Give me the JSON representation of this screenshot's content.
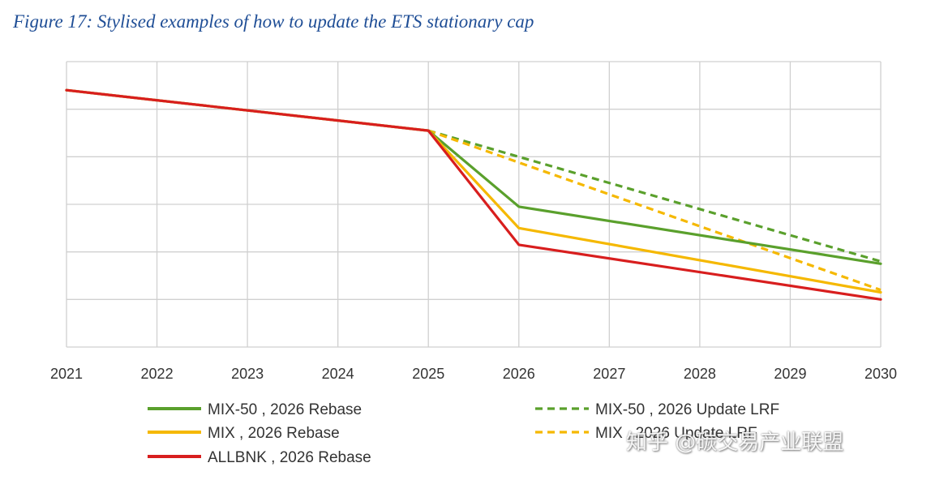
{
  "title": "Figure 17: Stylised examples of how to update the ETS stationary cap",
  "watermark": "知乎 @碳交易产业联盟",
  "chart_data": {
    "type": "line",
    "x": [
      2021,
      2022,
      2023,
      2024,
      2025,
      2026,
      2027,
      2028,
      2029,
      2030
    ],
    "xlabel": "",
    "ylabel": "",
    "ylim": [
      0,
      6
    ],
    "grid": true,
    "y_tick_labels_shown": false,
    "legend_position": "bottom",
    "series": [
      {
        "name": "MIX-50 , 2026 Rebase",
        "color": "#5aa02c",
        "dash": false,
        "x": [
          2021,
          2025,
          2026,
          2030
        ],
        "values": [
          5.4,
          4.55,
          2.95,
          1.75
        ]
      },
      {
        "name": "MIX-50 , 2026 Update LRF",
        "color": "#5aa02c",
        "dash": true,
        "x": [
          2025,
          2030
        ],
        "values": [
          4.55,
          1.8
        ]
      },
      {
        "name": "MIX , 2026 Rebase",
        "color": "#f5b800",
        "dash": false,
        "x": [
          2021,
          2025,
          2026,
          2030
        ],
        "values": [
          5.4,
          4.55,
          2.5,
          1.15
        ]
      },
      {
        "name": "MIX , 2026 Update LRF",
        "color": "#f5b800",
        "dash": true,
        "x": [
          2025,
          2030
        ],
        "values": [
          4.55,
          1.2
        ]
      },
      {
        "name": "ALLBNK , 2026 Rebase",
        "color": "#d81e1e",
        "dash": false,
        "x": [
          2021,
          2025,
          2026,
          2030
        ],
        "values": [
          5.4,
          4.55,
          2.15,
          1.0
        ]
      }
    ]
  }
}
